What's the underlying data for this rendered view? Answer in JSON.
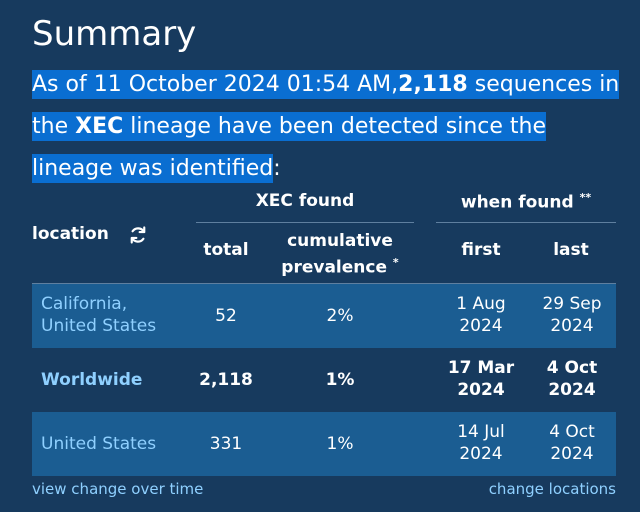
{
  "summary": {
    "title": "Summary",
    "intro_prefix": "As of 11 October 2024 01:54 AM,",
    "count": "2,118",
    "intro_mid": " sequences in the ",
    "lineage": "XEC",
    "intro_suffix": " lineage have been detected since the lineage was identified",
    "intro_colon": ":"
  },
  "table": {
    "headers": {
      "location": "location",
      "group_found": "XEC found",
      "group_when": "when found",
      "group_when_mark": "**",
      "total": "total",
      "cumulative_line1": "cumulative",
      "cumulative_line2": "prevalence",
      "cumulative_mark": "*",
      "first": "first",
      "last": "last"
    },
    "rows": [
      {
        "location_line1": "California,",
        "location_line2": "United States",
        "total": "52",
        "prevalence": "2%",
        "first_line1": "1 Aug",
        "first_line2": "2024",
        "last_line1": "29 Sep",
        "last_line2": "2024"
      },
      {
        "location_line1": "Worldwide",
        "location_line2": "",
        "total": "2,118",
        "prevalence": "1%",
        "first_line1": "17 Mar",
        "first_line2": "2024",
        "last_line1": "4 Oct",
        "last_line2": "2024"
      },
      {
        "location_line1": "United States",
        "location_line2": "",
        "total": "331",
        "prevalence": "1%",
        "first_line1": "14 Jul",
        "first_line2": "2024",
        "last_line1": "4 Oct",
        "last_line2": "2024"
      }
    ]
  },
  "footer": {
    "view_change": "view change over time",
    "change_locations": "change locations"
  },
  "colors": {
    "background": "#173a5e",
    "highlight": "#0a6ed1",
    "row_alt": "#1b5d92",
    "link": "#8fd0ff"
  },
  "icons": {
    "refresh": "refresh-icon"
  }
}
